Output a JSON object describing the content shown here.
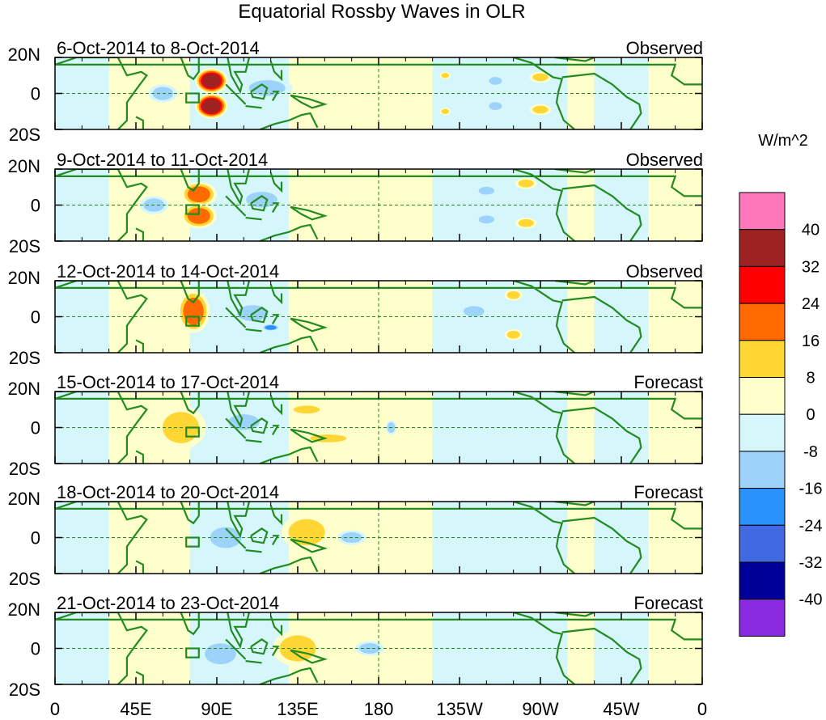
{
  "chart_data": {
    "type": "heatmap",
    "title": "Equatorial Rossby Waves in OLR",
    "units": "W/m^2",
    "x_ticks": [
      "0",
      "45E",
      "90E",
      "135E",
      "180",
      "135W",
      "90W",
      "45W",
      "0"
    ],
    "x_tick_lon": [
      0,
      45,
      90,
      135,
      180,
      225,
      270,
      315,
      360
    ],
    "y_ticks": [
      "20N",
      "0",
      "20S"
    ],
    "y_tick_lat": [
      20,
      0,
      -20
    ],
    "xlim": [
      0,
      360
    ],
    "ylim": [
      -20,
      20
    ],
    "colorbar": {
      "levels": [
        "40",
        "32",
        "24",
        "16",
        "8",
        "0",
        "-8",
        "-16",
        "-24",
        "-32",
        "-40"
      ],
      "colors": [
        "#ff77bb",
        "#9e2222",
        "#ff0000",
        "#ff6a00",
        "#ffd633",
        "#ffffcc",
        "#d5f6fb",
        "#9dd3fb",
        "#2a92fb",
        "#4169e1",
        "#000099",
        "#8a2be2"
      ]
    },
    "panels": [
      {
        "period": "6-Oct-2014 to 8-Oct-2014",
        "status": "Observed",
        "features": [
          {
            "lon": 87,
            "lat": 7,
            "rx": 9,
            "ry": 7,
            "value": 36
          },
          {
            "lon": 87,
            "lat": -7,
            "rx": 9,
            "ry": 7,
            "value": 36
          },
          {
            "lon": 60,
            "lat": 0,
            "rx": 8,
            "ry": 5,
            "value": -10
          },
          {
            "lon": 118,
            "lat": 3,
            "rx": 14,
            "ry": 6,
            "value": -10
          },
          {
            "lon": 270,
            "lat": 9,
            "rx": 6,
            "ry": 3,
            "value": 10
          },
          {
            "lon": 270,
            "lat": -9,
            "rx": 6,
            "ry": 3,
            "value": 10
          },
          {
            "lon": 245,
            "lat": 7,
            "rx": 5,
            "ry": 3,
            "value": -9
          },
          {
            "lon": 245,
            "lat": -7,
            "rx": 5,
            "ry": 3,
            "value": -9
          },
          {
            "lon": 217,
            "lat": 10,
            "rx": 3,
            "ry": 2,
            "value": 9
          },
          {
            "lon": 217,
            "lat": -10,
            "rx": 3,
            "ry": 2,
            "value": 9
          }
        ]
      },
      {
        "period": "9-Oct-2014 to 11-Oct-2014",
        "status": "Observed",
        "features": [
          {
            "lon": 80,
            "lat": 6,
            "rx": 10,
            "ry": 7,
            "value": 20
          },
          {
            "lon": 80,
            "lat": -6,
            "rx": 10,
            "ry": 7,
            "value": 20
          },
          {
            "lon": 55,
            "lat": 0,
            "rx": 8,
            "ry": 5,
            "value": -10
          },
          {
            "lon": 115,
            "lat": 3,
            "rx": 12,
            "ry": 6,
            "value": -10
          },
          {
            "lon": 262,
            "lat": 12,
            "rx": 6,
            "ry": 3,
            "value": 10
          },
          {
            "lon": 262,
            "lat": -10,
            "rx": 6,
            "ry": 3,
            "value": 10
          },
          {
            "lon": 240,
            "lat": 8,
            "rx": 6,
            "ry": 3,
            "value": -9
          },
          {
            "lon": 240,
            "lat": -8,
            "rx": 6,
            "ry": 3,
            "value": -9
          }
        ]
      },
      {
        "period": "12-Oct-2014 to 14-Oct-2014",
        "status": "Observed",
        "features": [
          {
            "lon": 77,
            "lat": 3,
            "rx": 9,
            "ry": 12,
            "value": 20
          },
          {
            "lon": 110,
            "lat": 2,
            "rx": 12,
            "ry": 6,
            "value": -10
          },
          {
            "lon": 120,
            "lat": -6,
            "rx": 5,
            "ry": 2,
            "value": -20
          },
          {
            "lon": 255,
            "lat": 12,
            "rx": 5,
            "ry": 3,
            "value": 10
          },
          {
            "lon": 255,
            "lat": -10,
            "rx": 5,
            "ry": 3,
            "value": 10
          },
          {
            "lon": 233,
            "lat": 3,
            "rx": 8,
            "ry": 4,
            "value": -9
          }
        ]
      },
      {
        "period": "15-Oct-2014 to 17-Oct-2014",
        "status": "Forecast",
        "features": [
          {
            "lon": 70,
            "lat": 0,
            "rx": 14,
            "ry": 12,
            "value": 10
          },
          {
            "lon": 105,
            "lat": 3,
            "rx": 12,
            "ry": 6,
            "value": -10
          },
          {
            "lon": 140,
            "lat": 10,
            "rx": 10,
            "ry": 3,
            "value": 10
          },
          {
            "lon": 152,
            "lat": -6,
            "rx": 14,
            "ry": 3,
            "value": 10
          },
          {
            "lon": 187,
            "lat": 0,
            "rx": 3,
            "ry": 4,
            "value": -9
          }
        ]
      },
      {
        "period": "18-Oct-2014 to 20-Oct-2014",
        "status": "Forecast",
        "features": [
          {
            "lon": 95,
            "lat": 0,
            "rx": 12,
            "ry": 8,
            "value": -10
          },
          {
            "lon": 140,
            "lat": 3,
            "rx": 14,
            "ry": 10,
            "value": 10
          },
          {
            "lon": 165,
            "lat": 0,
            "rx": 8,
            "ry": 4,
            "value": -9
          }
        ]
      },
      {
        "period": "21-Oct-2014 to 23-Oct-2014",
        "status": "Forecast",
        "features": [
          {
            "lon": 92,
            "lat": -3,
            "rx": 12,
            "ry": 8,
            "value": -10
          },
          {
            "lon": 135,
            "lat": 0,
            "rx": 14,
            "ry": 10,
            "value": 10
          },
          {
            "lon": 175,
            "lat": 0,
            "rx": 8,
            "ry": 4,
            "value": -9
          }
        ]
      }
    ]
  }
}
